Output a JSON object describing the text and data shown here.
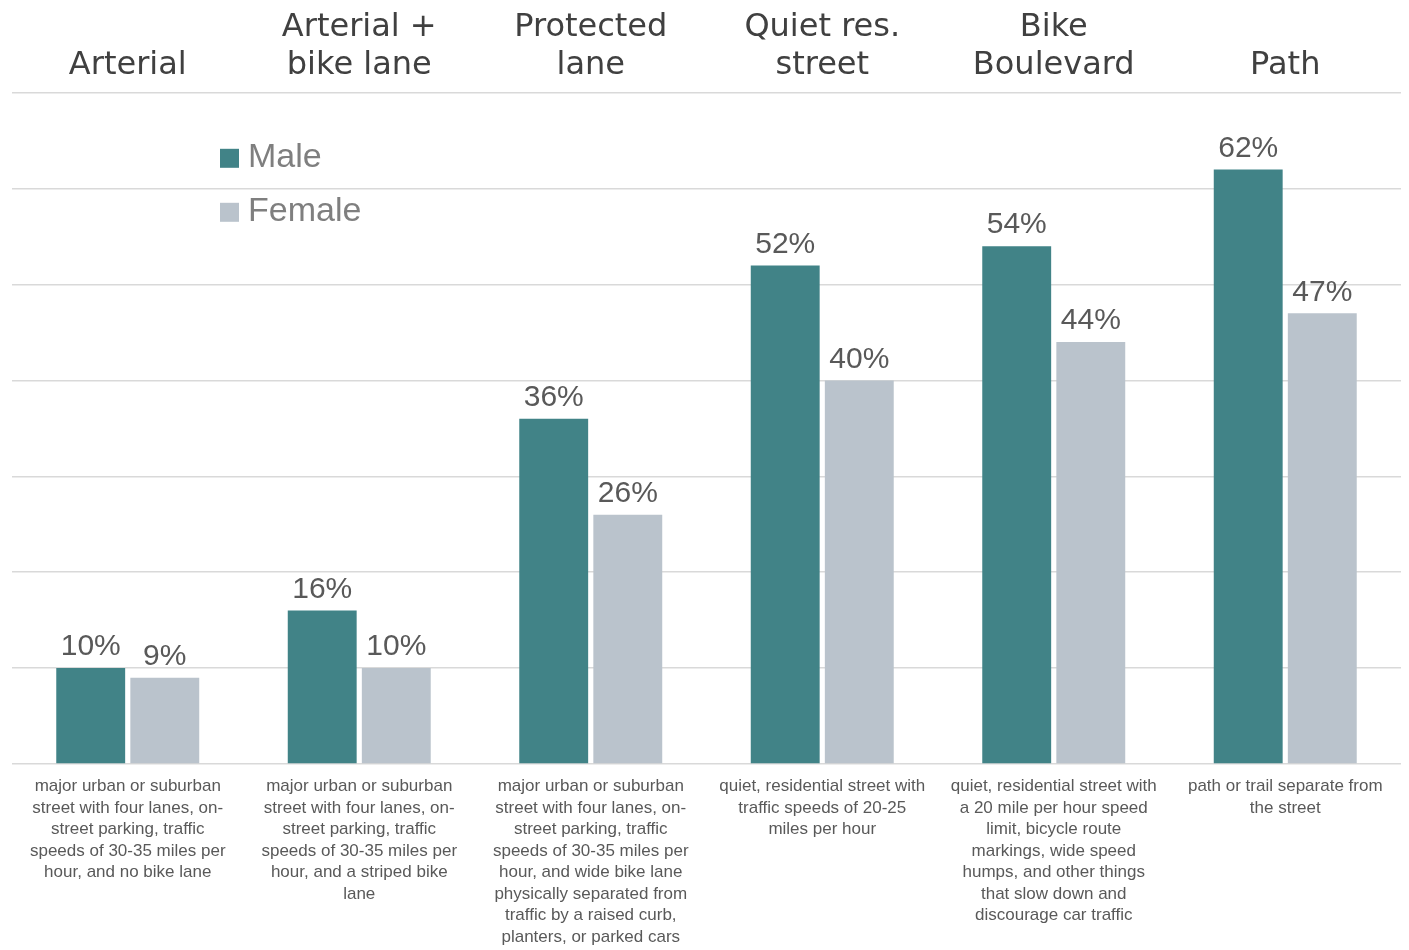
{
  "chart_data": {
    "type": "bar",
    "categories": [
      "Arterial",
      "Arterial + bike lane",
      "Protected lane",
      "Quiet res. street",
      "Bike Boulevard",
      "Path"
    ],
    "series": [
      {
        "name": "Male",
        "color": "#418387",
        "values": [
          10,
          16,
          36,
          52,
          54,
          62
        ],
        "value_labels": [
          "10%",
          "16%",
          "36%",
          "52%",
          "54%",
          "62%"
        ]
      },
      {
        "name": "Female",
        "color": "#bac3cc",
        "values": [
          9,
          10,
          26,
          40,
          44,
          47
        ],
        "value_labels": [
          "9%",
          "10%",
          "26%",
          "40%",
          "44%",
          "47%"
        ]
      }
    ],
    "tick_labels": "x",
    "grid": "y",
    "legend": "top left",
    "annotations": [
      "major urban or suburban street with four lanes, on-street parking, traffic speeds of 30-35 miles per hour, and no bike lane",
      "major urban or suburban street with four lanes, on-street parking, traffic speeds of 30-35 miles per hour, and a striped bike lane",
      "major urban or suburban street with four lanes, on-street parking, traffic speeds of 30-35 miles per hour, and wide bike lane physically separated from traffic by a raised curb, planters, or parked cars",
      "quiet, residential street with traffic speeds of 20-25 miles per hour",
      "quiet, residential street with a 20 mile per hour speed limit, bicycle route markings, wide speed humps, and other things that slow down and discourage car traffic",
      "path or trail separate from the street"
    ]
  }
}
